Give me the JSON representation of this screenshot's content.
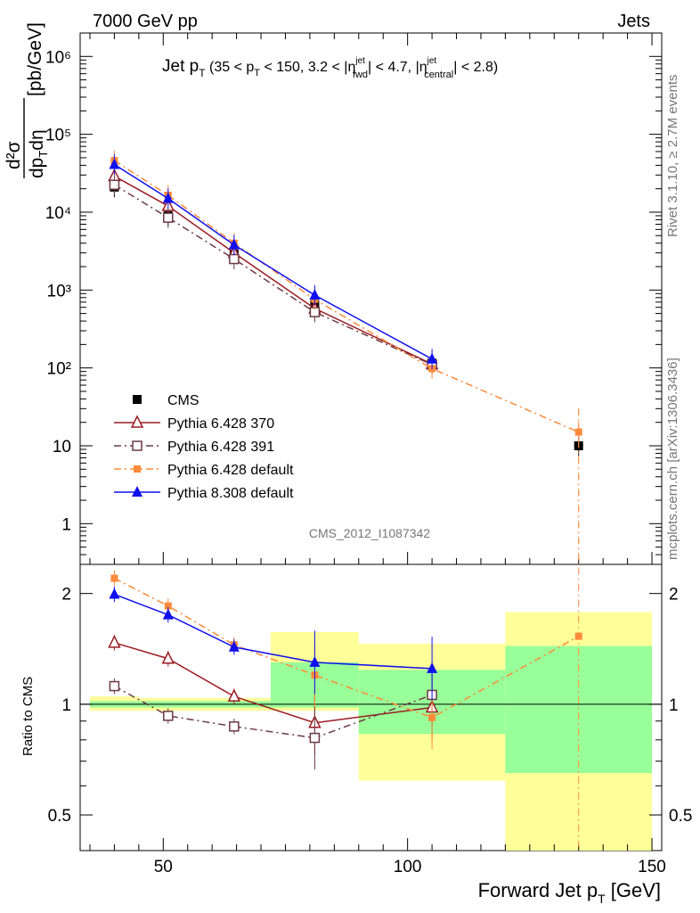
{
  "header": {
    "left": "7000 GeV pp",
    "right": "Jets",
    "right_side_top": "Rivet 3.1.10, ≥ 2.7M events",
    "right_side_bottom": "mcplots.cern.ch [arXiv:1306.3436]",
    "watermark": "CMS_2012_I1087342"
  },
  "title": {
    "main": "Jet p",
    "main_sub": "T",
    "range_a": "(35 < p",
    "range_a_sub": "T",
    "range_b": " < 150, 3.2 < |η",
    "range_b_sup": "jet",
    "range_b_sub": "fwd",
    "range_c": "| < 4.7, |η",
    "range_c_sup": "jet",
    "range_c_sub": "central",
    "range_d": "| < 2.8)"
  },
  "axes": {
    "ylabel_top": "d²σ",
    "ylabel_bottom": "dp",
    "ylabel_bottom_sub": "T",
    "ylabel_bottom_tail": "dη",
    "ylabel_units": "[pb/GeV]",
    "ratio_label": "Ratio to CMS",
    "xlabel": "Forward Jet p",
    "xlabel_sub": "T",
    "xlabel_units": " [GeV]"
  },
  "chart_data": [
    {
      "type": "scatter",
      "panel": "main",
      "yscale": "log",
      "xlim": [
        33,
        152
      ],
      "ylim": [
        0.3,
        2000000
      ],
      "y_ticks": [
        "1",
        "10",
        "10²",
        "10³",
        "10⁴",
        "10⁵",
        "10⁶"
      ],
      "series": [
        {
          "name": "CMS",
          "color": "#000000",
          "marker": "square-filled",
          "line": "none",
          "x": [
            40,
            51,
            64.5,
            81,
            105,
            135
          ],
          "y": [
            21000,
            9000,
            2900,
            650,
            115,
            10
          ]
        },
        {
          "name": "Pythia 6.428 370",
          "color": "#9b1b22",
          "marker": "triangle-open",
          "line": "solid",
          "x": [
            40,
            51,
            64.5,
            81,
            105
          ],
          "y": [
            29000,
            12000,
            3000,
            580,
            112
          ]
        },
        {
          "name": "Pythia 6.428 391",
          "color": "#6b3a44",
          "marker": "square-open",
          "line": "dashdot",
          "x": [
            40,
            51,
            64.5,
            81,
            105
          ],
          "y": [
            22500,
            8500,
            2500,
            520,
            110
          ]
        },
        {
          "name": "Pythia 6.428 default",
          "color": "#ff8a3a",
          "marker": "square-filled-small",
          "line": "dashdot",
          "x": [
            40,
            51,
            64.5,
            81,
            105,
            135
          ],
          "y": [
            46000,
            16500,
            4000,
            760,
            98,
            15
          ]
        },
        {
          "name": "Pythia 8.308 default",
          "color": "#1010ee",
          "marker": "triangle-filled",
          "line": "solid",
          "x": [
            40,
            51,
            64.5,
            81,
            105
          ],
          "y": [
            41000,
            15000,
            3800,
            860,
            130
          ]
        }
      ]
    },
    {
      "type": "scatter",
      "panel": "ratio",
      "yscale": "log",
      "xlim": [
        33,
        152
      ],
      "ylim": [
        0.4,
        2.4
      ],
      "x_ticks": [
        50,
        100,
        150
      ],
      "y_ticks": [
        0.5,
        1,
        2
      ],
      "bands": [
        {
          "x": [
            35,
            45
          ],
          "yellow": [
            0.96,
            1.05
          ],
          "green": [
            0.98,
            1.02
          ]
        },
        {
          "x": [
            45,
            72
          ],
          "yellow": [
            0.96,
            1.04
          ],
          "green": [
            0.98,
            1.02
          ]
        },
        {
          "x": [
            72,
            90
          ],
          "yellow": [
            0.96,
            1.57
          ],
          "green": [
            0.98,
            1.3
          ]
        },
        {
          "x": [
            90,
            120
          ],
          "yellow": [
            0.62,
            1.46
          ],
          "green": [
            0.83,
            1.24
          ]
        },
        {
          "x": [
            120,
            150
          ],
          "yellow": [
            0.4,
            1.78
          ],
          "green": [
            0.65,
            1.44
          ]
        }
      ],
      "series": [
        {
          "name": "Pythia 6.428 370",
          "x": [
            40,
            51,
            64.5,
            81,
            105
          ],
          "y": [
            1.47,
            1.33,
            1.05,
            0.89,
            0.98
          ]
        },
        {
          "name": "Pythia 6.428 391",
          "x": [
            40,
            51,
            64.5,
            81,
            105
          ],
          "y": [
            1.12,
            0.93,
            0.87,
            0.81,
            1.06
          ]
        },
        {
          "name": "Pythia 6.428 default",
          "x": [
            40,
            51,
            64.5,
            81,
            105,
            135
          ],
          "y": [
            2.2,
            1.85,
            1.45,
            1.2,
            0.92,
            1.53
          ]
        },
        {
          "name": "Pythia 8.308 default",
          "x": [
            40,
            51,
            64.5,
            81,
            105
          ],
          "y": [
            1.99,
            1.75,
            1.43,
            1.3,
            1.25
          ]
        }
      ]
    }
  ]
}
